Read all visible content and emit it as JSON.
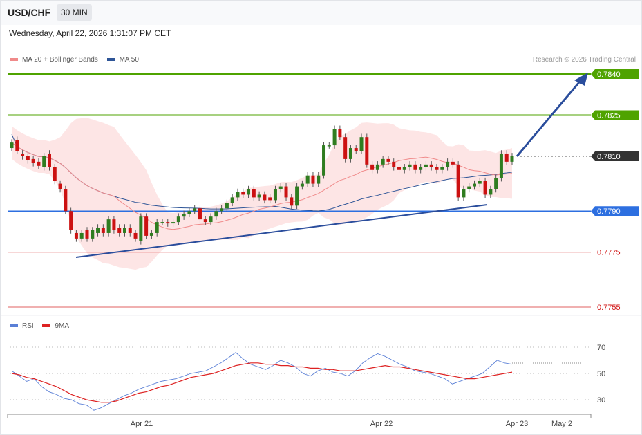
{
  "header": {
    "symbol": "USD/CHF",
    "timeframe": "30 MIN"
  },
  "timestamp": "Wednesday, April 22, 2026 1:31:07 PM CET",
  "legend": [
    {
      "label": "MA 20 + Bollinger Bands",
      "color": "#f08a8a"
    },
    {
      "label": "MA 50",
      "color": "#2e5597"
    }
  ],
  "rsi_legend": [
    {
      "label": "RSI",
      "color": "#5a7fd6"
    },
    {
      "label": "9MA",
      "color": "#dd2222"
    }
  ],
  "credit": "Research © 2026 Trading Central",
  "colors": {
    "bull": "#2f7d20",
    "bear": "#cc1111",
    "resistance": "#4fa300",
    "support": "#2d6fe0",
    "minor": "#e06060",
    "last": "#333333",
    "trendline": "#2a4d9c"
  },
  "chart_data": [
    {
      "type": "candlestick",
      "title": "USD/CHF",
      "ylim": [
        0.77505,
        0.77841
      ],
      "x_tick_labels": [
        "Apr 21",
        "Apr 22",
        "Apr 23",
        "May 2"
      ],
      "price_levels": [
        {
          "value": 0.784,
          "label": "0.7840",
          "kind": "resistance"
        },
        {
          "value": 0.7825,
          "label": "0.7825",
          "kind": "resistance"
        },
        {
          "value": 0.781,
          "label": "0.7810",
          "kind": "last"
        },
        {
          "value": 0.779,
          "label": "0.7790",
          "kind": "support"
        },
        {
          "value": 0.7775,
          "label": "0.7775",
          "kind": "minor"
        },
        {
          "value": 0.7755,
          "label": "0.7755",
          "kind": "minor"
        }
      ],
      "candles_close": [
        0.7815,
        0.7812,
        0.781,
        0.78085,
        0.78075,
        0.78065,
        0.781,
        0.7806,
        0.7801,
        0.7798,
        0.779,
        0.7783,
        0.778,
        0.7782,
        0.778,
        0.7783,
        0.7784,
        0.7782,
        0.7787,
        0.7783,
        0.7782,
        0.7784,
        0.7782,
        0.778,
        0.7788,
        0.7781,
        0.7782,
        0.7786,
        0.7786,
        0.77855,
        0.7786,
        0.7788,
        0.7789,
        0.779,
        0.7791,
        0.7787,
        0.7786,
        0.7788,
        0.779,
        0.7791,
        0.7793,
        0.7795,
        0.7797,
        0.7796,
        0.7798,
        0.7795,
        0.7796,
        0.7794,
        0.7794,
        0.7798,
        0.7799,
        0.7795,
        0.7792,
        0.7799,
        0.78,
        0.7803,
        0.78,
        0.7803,
        0.7814,
        0.7814,
        0.782,
        0.7817,
        0.7809,
        0.7813,
        0.7812,
        0.7817,
        0.7807,
        0.7805,
        0.7807,
        0.7809,
        0.7808,
        0.7806,
        0.7805,
        0.7806,
        0.7807,
        0.7805,
        0.7806,
        0.7807,
        0.7806,
        0.7805,
        0.7806,
        0.7808,
        0.7807,
        0.7795,
        0.7798,
        0.7799,
        0.78,
        0.7801,
        0.7796,
        0.7798,
        0.7802,
        0.7811,
        0.7808,
        0.781
      ],
      "candles_open": [
        0.7813,
        0.7816,
        0.7811,
        0.781,
        0.7809,
        0.7808,
        0.7806,
        0.7811,
        0.7806,
        0.78,
        0.7798,
        0.779,
        0.7782,
        0.778,
        0.7783,
        0.778,
        0.7782,
        0.7784,
        0.7782,
        0.7787,
        0.7784,
        0.7782,
        0.7784,
        0.7782,
        0.7779,
        0.7788,
        0.7781,
        0.7782,
        0.7786,
        0.7786,
        0.77855,
        0.7786,
        0.7788,
        0.7789,
        0.779,
        0.7791,
        0.7787,
        0.7786,
        0.7788,
        0.779,
        0.7791,
        0.7793,
        0.7795,
        0.7797,
        0.7796,
        0.7798,
        0.7795,
        0.7796,
        0.7795,
        0.7794,
        0.7798,
        0.7799,
        0.7795,
        0.7792,
        0.7799,
        0.78,
        0.7803,
        0.78,
        0.7803,
        0.7814,
        0.7814,
        0.782,
        0.7817,
        0.7809,
        0.7813,
        0.7812,
        0.7817,
        0.7807,
        0.7805,
        0.7807,
        0.7809,
        0.7808,
        0.7806,
        0.7805,
        0.7806,
        0.7807,
        0.7805,
        0.7806,
        0.7807,
        0.7806,
        0.7805,
        0.7806,
        0.7808,
        0.7807,
        0.7795,
        0.7798,
        0.7799,
        0.78,
        0.7801,
        0.7796,
        0.7798,
        0.7802,
        0.7811,
        0.7808
      ]
    },
    {
      "type": "line",
      "title": "RSI",
      "ylim": [
        20,
        80
      ],
      "y_ticks": [
        70,
        50,
        30
      ],
      "series": [
        {
          "name": "RSI",
          "values": [
            52,
            48,
            44,
            46,
            40,
            36,
            34,
            31,
            30,
            27,
            26,
            22,
            24,
            27,
            30,
            33,
            35,
            38,
            40,
            42,
            44,
            45,
            46,
            48,
            50,
            51,
            52,
            55,
            58,
            62,
            66,
            61,
            57,
            55,
            53,
            56,
            60,
            58,
            55,
            50,
            48,
            52,
            54,
            51,
            50,
            48,
            52,
            58,
            62,
            65,
            63,
            60,
            57,
            55,
            52,
            51,
            50,
            48,
            46,
            42,
            44,
            46,
            48,
            50,
            55,
            60,
            58,
            57
          ]
        },
        {
          "name": "9MA",
          "values": [
            50,
            49,
            47,
            46,
            44,
            42,
            40,
            37,
            34,
            32,
            30,
            29,
            28,
            28,
            29,
            31,
            33,
            35,
            36,
            38,
            40,
            41,
            43,
            45,
            47,
            48,
            49,
            50,
            52,
            54,
            56,
            57,
            58,
            58,
            57,
            57,
            56,
            56,
            55,
            55,
            54,
            54,
            53,
            53,
            52,
            52,
            52,
            53,
            54,
            55,
            56,
            55,
            55,
            54,
            53,
            52,
            51,
            50,
            49,
            48,
            47,
            46,
            46,
            47,
            48,
            49,
            50,
            51
          ]
        }
      ]
    }
  ]
}
